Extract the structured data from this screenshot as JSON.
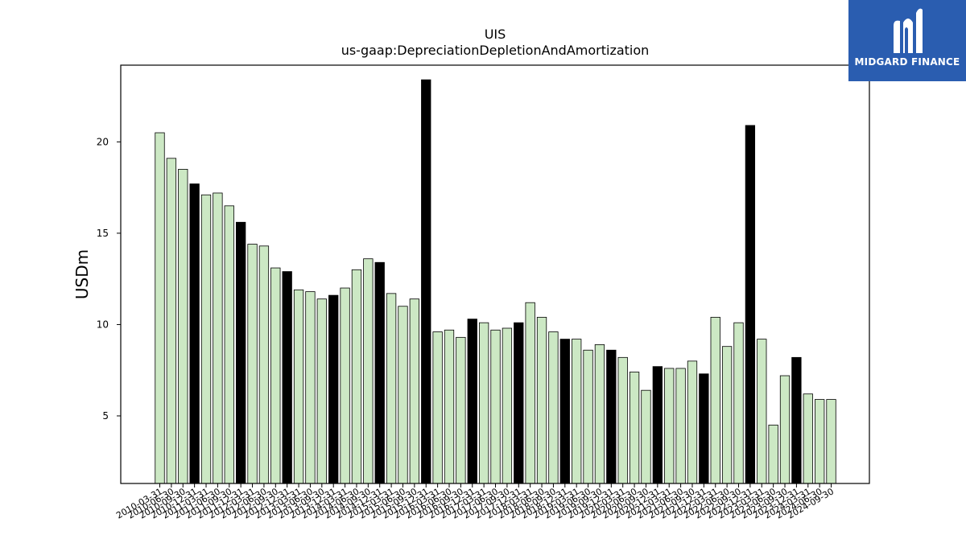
{
  "chart_data": {
    "type": "bar",
    "title": "UIS",
    "subtitle": "us-gaap:DepreciationDepletionAndAmortization",
    "ylabel": "USDm",
    "xlabel": "",
    "ylim": [
      1.3,
      24.2
    ],
    "yticks": [
      5,
      10,
      15,
      20
    ],
    "grid": false,
    "colors": {
      "quarter": "#cce8c4",
      "annual": "#000000",
      "edge": "#000000"
    },
    "categories": [
      "2010-03-31",
      "2010-06-30",
      "2010-09-30",
      "2010-12-31",
      "2011-03-31",
      "2011-06-30",
      "2011-09-30",
      "2011-12-31",
      "2012-03-31",
      "2012-06-30",
      "2012-09-30",
      "2012-12-31",
      "2013-03-31",
      "2013-06-30",
      "2013-09-30",
      "2013-12-31",
      "2014-03-31",
      "2014-06-30",
      "2014-09-30",
      "2014-12-31",
      "2015-03-31",
      "2015-06-30",
      "2015-09-30",
      "2015-12-31",
      "2016-03-31",
      "2016-06-30",
      "2016-09-30",
      "2016-12-31",
      "2017-03-31",
      "2017-06-30",
      "2017-09-30",
      "2017-12-31",
      "2018-03-31",
      "2018-06-30",
      "2018-09-30",
      "2018-12-31",
      "2019-03-31",
      "2019-06-30",
      "2019-09-30",
      "2019-12-31",
      "2020-03-31",
      "2020-06-30",
      "2020-09-30",
      "2020-12-31",
      "2021-03-31",
      "2021-06-30",
      "2021-09-30",
      "2021-12-31",
      "2022-03-31",
      "2022-06-30",
      "2022-09-30",
      "2022-12-31",
      "2023-03-31",
      "2023-06-30",
      "2023-09-30",
      "2023-12-31",
      "2024-03-31",
      "2024-06-30",
      "2024-09-30"
    ],
    "values": [
      20.5,
      19.1,
      18.5,
      17.7,
      17.1,
      17.2,
      16.5,
      15.6,
      14.4,
      14.3,
      13.1,
      12.9,
      11.9,
      11.8,
      11.4,
      11.6,
      12.0,
      13.0,
      13.6,
      13.4,
      11.7,
      11.0,
      11.4,
      23.4,
      9.6,
      9.7,
      9.3,
      10.3,
      10.1,
      9.7,
      9.8,
      10.1,
      11.2,
      10.4,
      9.6,
      9.2,
      9.2,
      8.6,
      8.9,
      8.6,
      8.2,
      7.4,
      6.4,
      7.7,
      7.6,
      7.6,
      8.0,
      7.3,
      10.4,
      8.8,
      10.1,
      20.9,
      9.2,
      4.5,
      7.2,
      8.2,
      6.2,
      5.9,
      5.9
    ],
    "annual_flags": [
      false,
      false,
      false,
      true,
      false,
      false,
      false,
      true,
      false,
      false,
      false,
      true,
      false,
      false,
      false,
      true,
      false,
      false,
      false,
      true,
      false,
      false,
      false,
      true,
      false,
      false,
      false,
      true,
      false,
      false,
      false,
      true,
      false,
      false,
      false,
      true,
      false,
      false,
      false,
      true,
      false,
      false,
      false,
      true,
      false,
      false,
      false,
      true,
      false,
      false,
      false,
      true,
      false,
      false,
      false,
      true,
      false,
      false,
      false
    ]
  },
  "logo": {
    "text": "MIDGARD FINANCE",
    "background": "#2a5db0"
  }
}
